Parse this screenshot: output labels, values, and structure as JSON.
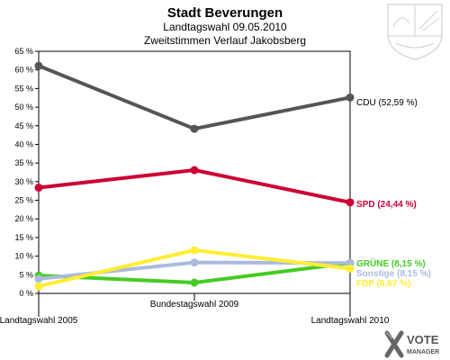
{
  "header": {
    "title": "Stadt Beverungen",
    "subtitle1": "Landtagswahl 09.05.2010",
    "subtitle2": "Zweitstimmen Verlauf Jakobsberg"
  },
  "logo": {
    "brand_line1": "VOTE",
    "brand_line2": "MANAGER",
    "emblem_icon": "nrw-coat-of-arms-icon"
  },
  "chart_data": {
    "type": "line",
    "title": "Zweitstimmen Verlauf Jakobsberg",
    "categories": [
      "Landtagswahl 2005",
      "Bundestagswahl 2009",
      "Landtagswahl 2010"
    ],
    "ylim": [
      0,
      65
    ],
    "yticks": [
      0,
      5,
      10,
      15,
      20,
      25,
      30,
      35,
      40,
      45,
      50,
      55,
      60,
      65
    ],
    "ytick_labels": [
      "0 %",
      "5 %",
      "10 %",
      "15 %",
      "20 %",
      "25 %",
      "30 %",
      "35 %",
      "40 %",
      "45 %",
      "50 %",
      "55 %",
      "60 %",
      "65 %"
    ],
    "grid": false,
    "series": [
      {
        "name": "CDU",
        "values": [
          61.1,
          44.2,
          52.59
        ],
        "color": "#555555",
        "label": "CDU (52,59 %)"
      },
      {
        "name": "SPD",
        "values": [
          28.4,
          33.1,
          24.44
        ],
        "color": "#cc0033",
        "label": "SPD (24,44 %)"
      },
      {
        "name": "GRÜNE",
        "values": [
          4.8,
          2.9,
          8.15
        ],
        "color": "#44cc22",
        "label": "GRÜNE (8,15 %)"
      },
      {
        "name": "Sonstige",
        "values": [
          3.9,
          8.3,
          8.15
        ],
        "color": "#aabbdd",
        "label": "Sonstige (8,15 %)"
      },
      {
        "name": "FDP",
        "values": [
          1.9,
          11.6,
          6.67
        ],
        "color": "#ffee33",
        "label": "FDP (6,67 %)"
      }
    ]
  }
}
